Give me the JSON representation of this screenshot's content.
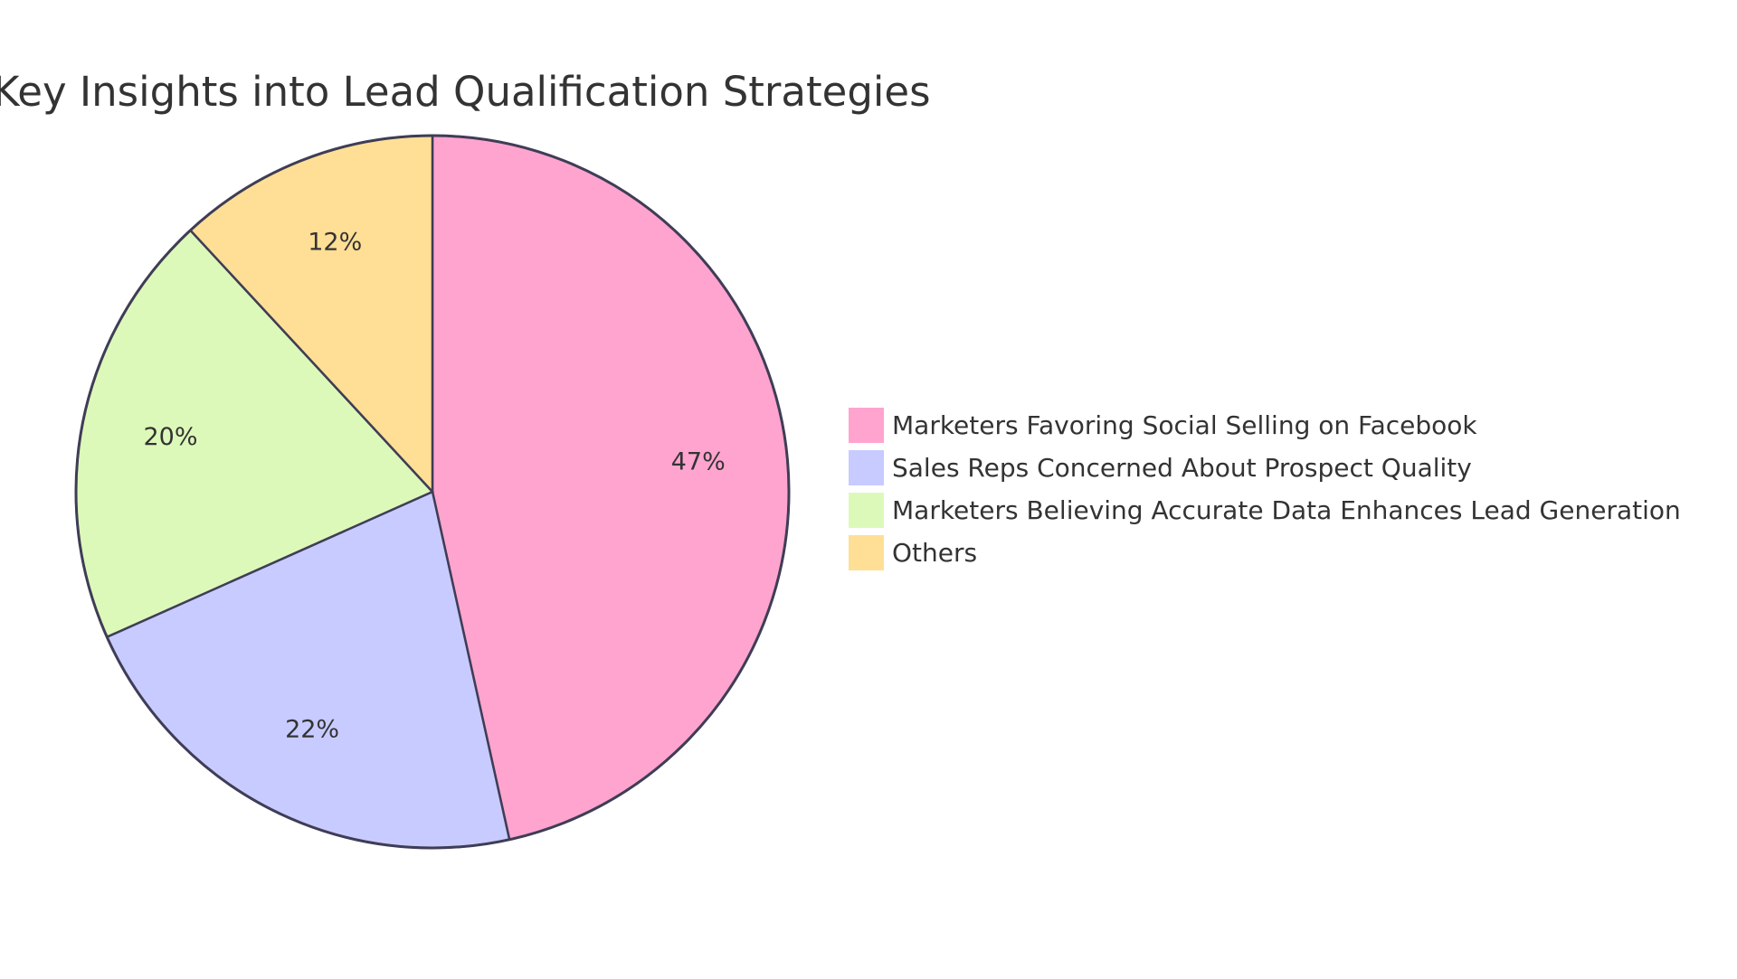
{
  "chart_data": {
    "type": "pie",
    "title": "Key Insights into Lead Qualification Strategies",
    "slices": [
      {
        "label": "Marketers Favoring Social Selling on Facebook",
        "value": 47,
        "display": "47%",
        "color": "#FFA4CF"
      },
      {
        "label": "Sales Reps Concerned About Prospect Quality",
        "value": 22,
        "display": "22%",
        "color": "#C8CBFF"
      },
      {
        "label": "Marketers Believing Accurate Data Enhances Lead Generation",
        "value": 20,
        "display": "20%",
        "color": "#DDF9B9"
      },
      {
        "label": "Others",
        "value": 12,
        "display": "12%",
        "color": "#FEDF95"
      }
    ],
    "legend_position": "right",
    "outline_color": "#3f3d56"
  }
}
